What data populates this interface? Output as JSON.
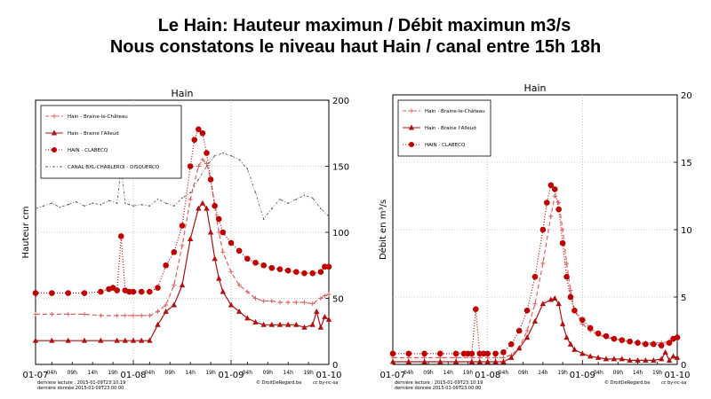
{
  "slide": {
    "title_line1": "Le Hain: Hauteur maximun  / Débit maximun m3/s",
    "title_line2": "Nous constatons le niveau haut Hain / canal entre 15h 18h"
  },
  "chart_data": [
    {
      "type": "line",
      "title": "Hain",
      "ylabel": "Hauteur cm",
      "xlabel": "",
      "ylim": [
        0,
        200
      ],
      "y_side": "right",
      "yticks": [
        "0",
        "50",
        "100",
        "150",
        "200"
      ],
      "xlim": [
        0,
        72
      ],
      "xticks": [
        {
          "x": 0,
          "label": "01-07",
          "major": true
        },
        {
          "x": 4,
          "label": "04h",
          "major": false
        },
        {
          "x": 9,
          "label": "09h",
          "major": false
        },
        {
          "x": 14,
          "label": "14h",
          "major": false
        },
        {
          "x": 19,
          "label": "19h",
          "major": false
        },
        {
          "x": 24,
          "label": "01-08",
          "major": true
        },
        {
          "x": 28,
          "label": "04h",
          "major": false
        },
        {
          "x": 33,
          "label": "09h",
          "major": false
        },
        {
          "x": 38,
          "label": "14h",
          "major": false
        },
        {
          "x": 43,
          "label": "19h",
          "major": false
        },
        {
          "x": 48,
          "label": "01-09",
          "major": true
        },
        {
          "x": 52,
          "label": "04h",
          "major": false
        },
        {
          "x": 57,
          "label": "09h",
          "major": false
        },
        {
          "x": 62,
          "label": "14h",
          "major": false
        },
        {
          "x": 67,
          "label": "19h",
          "major": false
        },
        {
          "x": 72,
          "label": "01-10",
          "major": true
        }
      ],
      "legend_position": "top-left",
      "footer_left": [
        "dernière lecture : 2015-01-09T23:10:19",
        "dernière donnée 2015-01-09T23:00:00"
      ],
      "footer_mid": "© DroitDeRegard.be",
      "footer_right": "cc by-nc-sa",
      "series": [
        {
          "name": "Hain - Braine-le-Château",
          "color": "#e06060",
          "style": "dashed-plus",
          "x": [
            0,
            4,
            8,
            12,
            16,
            20,
            22,
            24,
            26,
            28,
            30,
            32,
            34,
            36,
            38,
            40,
            41,
            42,
            43,
            44,
            45,
            46,
            48,
            50,
            52,
            54,
            56,
            58,
            60,
            62,
            64,
            66,
            68,
            70,
            71,
            72
          ],
          "y": [
            38,
            38,
            38,
            38,
            37,
            37,
            37,
            37,
            37,
            37,
            40,
            45,
            60,
            90,
            125,
            150,
            155,
            152,
            140,
            120,
            100,
            85,
            70,
            60,
            55,
            50,
            48,
            48,
            47,
            47,
            47,
            47,
            46,
            50,
            52,
            53
          ]
        },
        {
          "name": "Hain - Braine l'Alleud",
          "color": "#b01010",
          "style": "solid-triangle",
          "x": [
            0,
            4,
            8,
            12,
            16,
            20,
            22,
            24,
            26,
            28,
            30,
            32,
            34,
            36,
            38,
            40,
            41,
            42,
            43,
            44,
            45,
            46,
            48,
            50,
            52,
            54,
            56,
            58,
            60,
            62,
            64,
            66,
            68,
            69,
            70,
            71,
            72
          ],
          "y": [
            18,
            18,
            18,
            18,
            18,
            18,
            18,
            18,
            18,
            18,
            30,
            40,
            45,
            60,
            95,
            118,
            122,
            118,
            100,
            80,
            65,
            55,
            45,
            40,
            35,
            32,
            30,
            30,
            30,
            30,
            30,
            28,
            30,
            40,
            28,
            36,
            34
          ]
        },
        {
          "name": "HAIN - CLABECQ",
          "color": "#c00000",
          "style": "dotted-circle",
          "x": [
            0,
            4,
            8,
            12,
            16,
            18,
            19,
            20,
            21,
            22,
            23,
            24,
            26,
            28,
            30,
            32,
            34,
            36,
            38,
            39,
            40,
            41,
            42,
            43,
            44,
            45,
            46,
            48,
            50,
            52,
            54,
            56,
            58,
            60,
            62,
            64,
            66,
            68,
            70,
            71,
            72
          ],
          "y": [
            54,
            54,
            54,
            54,
            55,
            57,
            58,
            56,
            97,
            56,
            55,
            55,
            55,
            55,
            58,
            75,
            85,
            105,
            150,
            170,
            178,
            175,
            160,
            140,
            120,
            110,
            100,
            92,
            86,
            80,
            77,
            75,
            73,
            72,
            71,
            70,
            69,
            69,
            70,
            74,
            74
          ]
        },
        {
          "name": "CANAL BXL-CHARLEROI - DISQUERCQ",
          "color": "#555555",
          "style": "dashdot",
          "x": [
            0,
            2,
            4,
            6,
            8,
            10,
            12,
            14,
            16,
            18,
            20,
            21,
            22,
            23,
            24,
            26,
            28,
            30,
            32,
            34,
            36,
            38,
            40,
            42,
            44,
            46,
            48,
            50,
            52,
            54,
            56,
            58,
            60,
            62,
            64,
            66,
            68,
            70,
            72
          ],
          "y": [
            118,
            120,
            122,
            119,
            121,
            123,
            120,
            122,
            121,
            124,
            122,
            150,
            122,
            121,
            120,
            121,
            120,
            125,
            122,
            120,
            126,
            130,
            140,
            150,
            158,
            160,
            158,
            155,
            148,
            130,
            110,
            118,
            125,
            122,
            125,
            128,
            126,
            118,
            112
          ]
        }
      ]
    },
    {
      "type": "line",
      "title": "Hain",
      "ylabel": "Débit en m³/s",
      "xlabel": "",
      "ylim": [
        0,
        20
      ],
      "y_side": "right",
      "yticks": [
        "0",
        "5",
        "10",
        "15",
        "20"
      ],
      "xlim": [
        0,
        72
      ],
      "xticks": [
        {
          "x": 0,
          "label": "01-07",
          "major": true
        },
        {
          "x": 4,
          "label": "04h",
          "major": false
        },
        {
          "x": 9,
          "label": "09h",
          "major": false
        },
        {
          "x": 14,
          "label": "14h",
          "major": false
        },
        {
          "x": 19,
          "label": "19h",
          "major": false
        },
        {
          "x": 24,
          "label": "01-08",
          "major": true
        },
        {
          "x": 28,
          "label": "04h",
          "major": false
        },
        {
          "x": 33,
          "label": "09h",
          "major": false
        },
        {
          "x": 38,
          "label": "14h",
          "major": false
        },
        {
          "x": 43,
          "label": "19h",
          "major": false
        },
        {
          "x": 48,
          "label": "01-09",
          "major": true
        },
        {
          "x": 52,
          "label": "04h",
          "major": false
        },
        {
          "x": 57,
          "label": "09h",
          "major": false
        },
        {
          "x": 62,
          "label": "14h",
          "major": false
        },
        {
          "x": 67,
          "label": "19h",
          "major": false
        },
        {
          "x": 72,
          "label": "01-10",
          "major": true
        }
      ],
      "legend_position": "top-left",
      "footer_left": [
        "dernière lecture : 2015-01-09T23:10:19",
        "dernière donnée 2015-01-09T23:00:00"
      ],
      "footer_mid": "© DroitDeRegard.be",
      "footer_right": "cc by-nc-sa",
      "series": [
        {
          "name": "Hain - Braine-le-Château",
          "color": "#e06060",
          "style": "dashed-plus",
          "x": [
            0,
            4,
            8,
            12,
            16,
            20,
            22,
            24,
            26,
            28,
            30,
            32,
            34,
            36,
            38,
            40,
            41,
            42,
            43,
            44,
            45,
            46,
            48,
            50,
            52,
            54,
            56,
            58,
            60,
            62,
            64,
            66,
            68,
            70,
            71,
            72
          ],
          "y": [
            0.5,
            0.5,
            0.5,
            0.5,
            0.5,
            0.5,
            0.5,
            0.5,
            0.5,
            0.5,
            0.7,
            1.2,
            2.5,
            4.5,
            7.5,
            11,
            12.5,
            12,
            10,
            7.5,
            5.5,
            4,
            3,
            2.5,
            2.2,
            2,
            1.9,
            1.8,
            1.7,
            1.7,
            1.6,
            1.6,
            1.6,
            1.7,
            1.8,
            1.9
          ]
        },
        {
          "name": "Hain - Braine l'Alleud",
          "color": "#b01010",
          "style": "solid-triangle",
          "x": [
            0,
            4,
            8,
            12,
            16,
            20,
            22,
            24,
            26,
            28,
            30,
            32,
            34,
            36,
            38,
            40,
            41,
            42,
            43,
            44,
            45,
            46,
            48,
            50,
            52,
            54,
            56,
            58,
            60,
            62,
            64,
            66,
            68,
            69,
            70,
            71,
            72
          ],
          "y": [
            0.2,
            0.2,
            0.2,
            0.2,
            0.2,
            0.2,
            0.2,
            0.2,
            0.2,
            0.2,
            0.5,
            1.2,
            2,
            3.2,
            4.5,
            4.8,
            4.9,
            4.5,
            3,
            2,
            1.5,
            1.1,
            0.8,
            0.6,
            0.5,
            0.4,
            0.4,
            0.4,
            0.3,
            0.3,
            0.3,
            0.3,
            0.4,
            0.9,
            0.3,
            0.6,
            0.5
          ]
        },
        {
          "name": "HAIN - CLABECQ",
          "color": "#c00000",
          "style": "dotted-circle",
          "x": [
            0,
            4,
            8,
            12,
            16,
            18,
            19,
            20,
            21,
            22,
            23,
            24,
            26,
            28,
            30,
            32,
            34,
            36,
            38,
            39,
            40,
            41,
            42,
            43,
            44,
            45,
            46,
            48,
            50,
            52,
            54,
            56,
            58,
            60,
            62,
            64,
            66,
            68,
            70,
            71,
            72
          ],
          "y": [
            0.8,
            0.8,
            0.8,
            0.8,
            0.8,
            0.8,
            0.8,
            0.8,
            4.1,
            0.8,
            0.8,
            0.8,
            0.8,
            0.9,
            1.5,
            2.5,
            4,
            6.5,
            10,
            12,
            13.3,
            13,
            11.5,
            9,
            6.5,
            5,
            4,
            3.3,
            2.7,
            2.3,
            2.1,
            1.9,
            1.8,
            1.7,
            1.6,
            1.5,
            1.5,
            1.4,
            1.6,
            1.9,
            2
          ]
        }
      ]
    }
  ]
}
